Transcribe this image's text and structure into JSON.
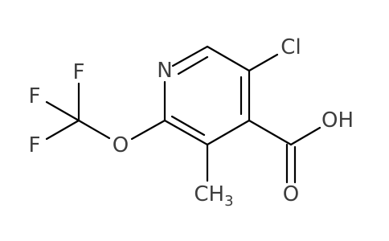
{
  "atoms": {
    "nitrogen": "N",
    "chlorine": "Cl",
    "hydroxyl": "OH",
    "carbonyl_oxygen": "O",
    "ether_oxygen": "O",
    "fluorine_top": "F",
    "fluorine_upper": "F",
    "fluorine_lower": "F",
    "methyl": {
      "label": "CH",
      "subscript": "3"
    }
  }
}
